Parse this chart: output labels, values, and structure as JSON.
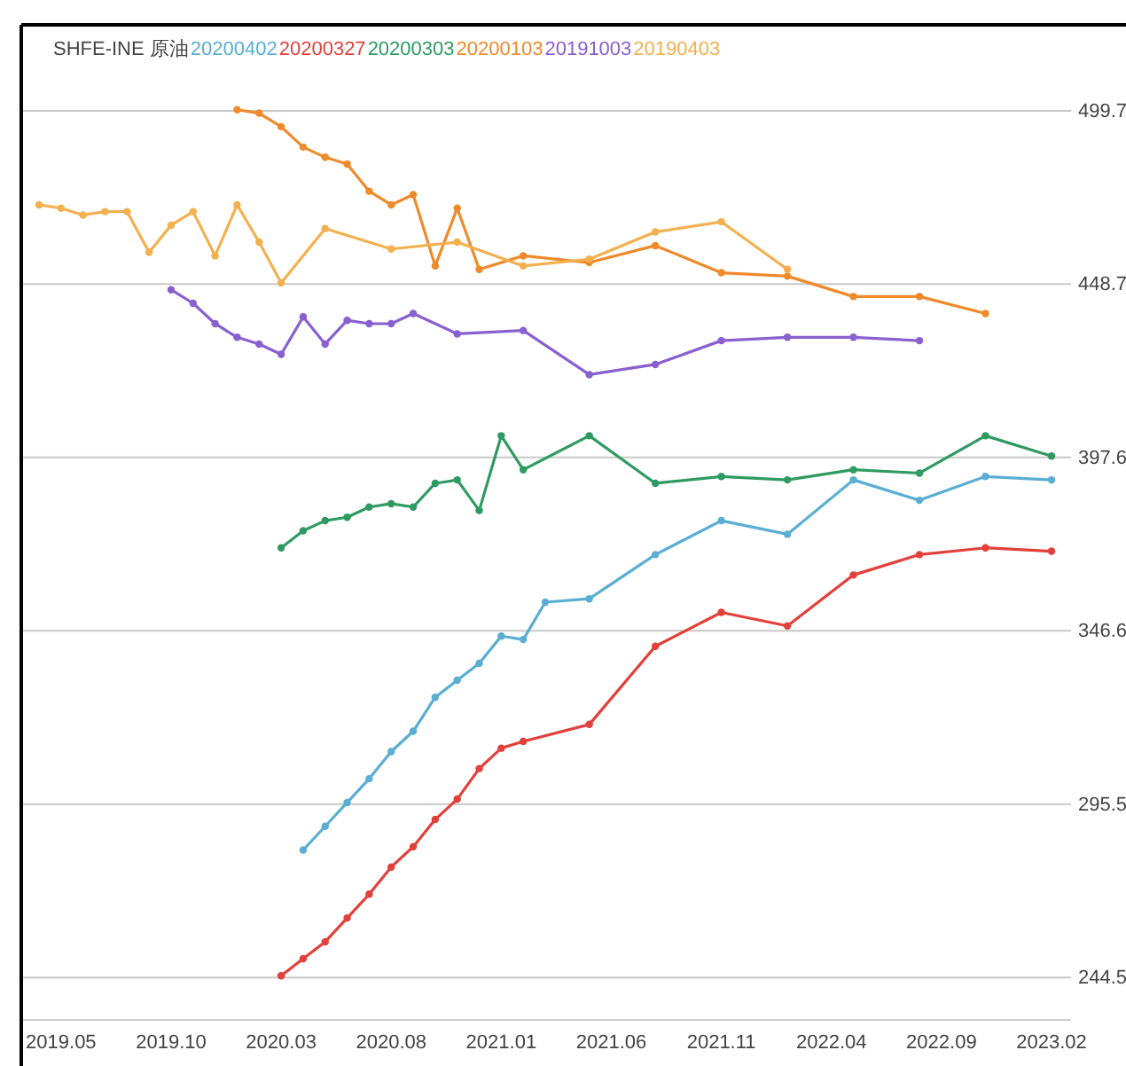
{
  "chart_data": {
    "type": "line",
    "title": "SHFE-INE 原油",
    "categories": [
      null,
      "2019.05",
      null,
      null,
      null,
      null,
      "2019.10",
      null,
      null,
      null,
      null,
      "2020.03",
      null,
      null,
      null,
      null,
      "2020.08",
      null,
      null,
      null,
      null,
      "2021.01",
      null,
      null,
      null,
      null,
      "2021.06",
      null,
      null,
      null,
      null,
      "2021.11",
      null,
      null,
      null,
      null,
      "2022.04",
      null,
      null,
      null,
      null,
      "2022.09",
      null,
      null,
      null,
      null,
      "2023.02"
    ],
    "series": [
      {
        "name": "20200402",
        "color": "#5aaed3",
        "values": [
          null,
          null,
          null,
          null,
          null,
          null,
          null,
          null,
          null,
          null,
          null,
          null,
          282,
          289,
          296,
          303,
          311,
          317,
          327,
          332,
          337,
          345,
          344,
          355,
          null,
          356,
          null,
          null,
          369,
          null,
          null,
          379,
          null,
          null,
          375,
          null,
          null,
          391,
          null,
          null,
          385,
          null,
          null,
          392,
          null,
          null,
          391
        ]
      },
      {
        "name": "20200327",
        "color": "#e2403a",
        "values": [
          null,
          null,
          null,
          null,
          null,
          null,
          null,
          null,
          null,
          null,
          null,
          245,
          250,
          255,
          262,
          269,
          277,
          283,
          291,
          297,
          306,
          312,
          314,
          null,
          null,
          319,
          null,
          null,
          342,
          null,
          null,
          352,
          null,
          null,
          348,
          null,
          null,
          363,
          null,
          null,
          369,
          null,
          null,
          371,
          null,
          null,
          370
        ]
      },
      {
        "name": "20200303",
        "color": "#2f9a62",
        "values": [
          null,
          null,
          null,
          null,
          null,
          null,
          null,
          null,
          null,
          null,
          null,
          371,
          376,
          379,
          380,
          383,
          384,
          383,
          390,
          391,
          382,
          404,
          394,
          null,
          null,
          404,
          null,
          null,
          390,
          null,
          null,
          392,
          null,
          null,
          391,
          null,
          null,
          394,
          null,
          null,
          393,
          null,
          null,
          404,
          null,
          null,
          398
        ]
      },
      {
        "name": "20200103",
        "color": "#ef8a2a",
        "values": [
          null,
          null,
          null,
          null,
          null,
          null,
          null,
          null,
          null,
          500,
          499,
          495,
          489,
          486,
          484,
          476,
          472,
          475,
          454,
          471,
          453,
          null,
          457,
          null,
          null,
          455,
          null,
          null,
          460,
          null,
          null,
          452,
          null,
          null,
          451,
          null,
          null,
          445,
          null,
          null,
          445,
          null,
          null,
          440,
          null,
          null,
          null
        ]
      },
      {
        "name": "20191003",
        "color": "#8a5fd0",
        "values": [
          null,
          null,
          null,
          null,
          null,
          null,
          447,
          443,
          437,
          433,
          431,
          428,
          439,
          431,
          438,
          437,
          437,
          440,
          null,
          434,
          null,
          null,
          435,
          null,
          null,
          422,
          null,
          null,
          425,
          null,
          null,
          432,
          null,
          null,
          433,
          null,
          null,
          433,
          null,
          null,
          432,
          null,
          null,
          null,
          null,
          null,
          null
        ]
      },
      {
        "name": "20190403",
        "color": "#f4b04e",
        "values": [
          472,
          471,
          469,
          470,
          470,
          458,
          466,
          470,
          457,
          472,
          461,
          449,
          null,
          465,
          null,
          null,
          459,
          null,
          null,
          461,
          null,
          null,
          454,
          null,
          null,
          456,
          null,
          null,
          464,
          null,
          null,
          467,
          null,
          null,
          453,
          null,
          null,
          null,
          null,
          null,
          null,
          null,
          null,
          null,
          null,
          null,
          null
        ]
      }
    ],
    "ylim": [
      232,
      525
    ],
    "yticks": [
      244.5,
      295.5,
      346.6,
      397.6,
      448.7,
      499.7
    ],
    "grid": "y",
    "legend": "top left",
    "marker": "circle"
  }
}
